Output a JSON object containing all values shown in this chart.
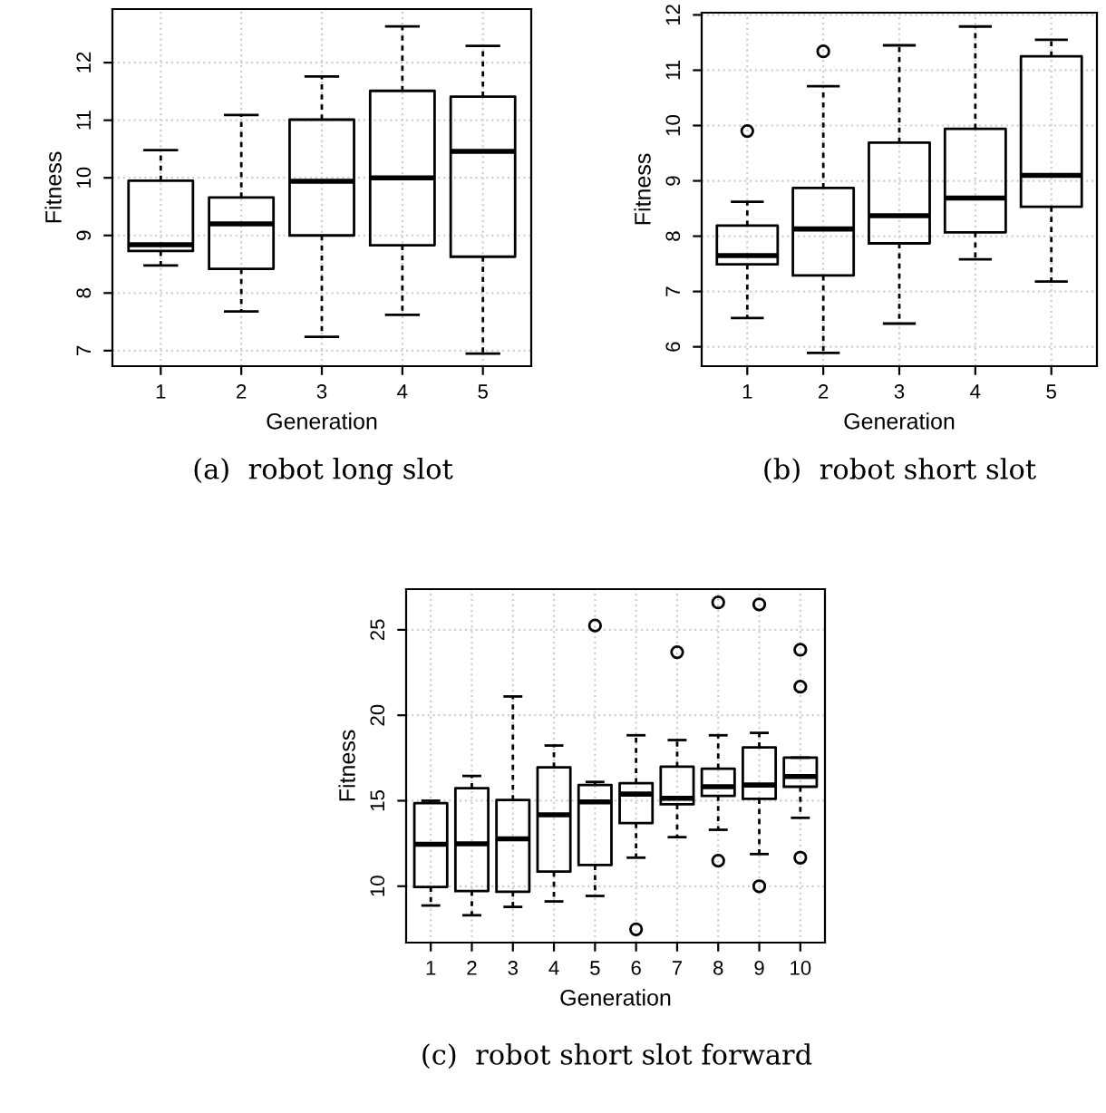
{
  "chart_data": [
    {
      "type": "box",
      "xlabel": "Generation",
      "ylabel": "Fitness",
      "annotations": [
        "(a)  robot long slot"
      ],
      "categories": [
        "1",
        "2",
        "3",
        "4",
        "5"
      ],
      "ylim": [
        6.73,
        12.93
      ],
      "yticks": [
        7,
        8,
        9,
        10,
        11,
        12
      ],
      "grid": true,
      "boxes": [
        {
          "low": 8.48,
          "q1": 8.73,
          "median": 8.84,
          "q3": 9.95,
          "high": 10.48
        },
        {
          "low": 7.68,
          "q1": 8.42,
          "median": 9.2,
          "q3": 9.66,
          "high": 11.09
        },
        {
          "low": 7.24,
          "q1": 9.0,
          "median": 9.94,
          "q3": 11.01,
          "high": 11.76
        },
        {
          "low": 7.62,
          "q1": 8.83,
          "median": 10.0,
          "q3": 11.51,
          "high": 12.63
        },
        {
          "low": 6.95,
          "q1": 8.63,
          "median": 10.46,
          "q3": 11.41,
          "high": 12.29
        }
      ]
    },
    {
      "type": "box",
      "xlabel": "Generation",
      "ylabel": "Fitness",
      "annotations": [
        "(b)  robot short slot"
      ],
      "categories": [
        "1",
        "2",
        "3",
        "4",
        "5"
      ],
      "ylim": [
        5.65,
        12.04
      ],
      "yticks": [
        6,
        7,
        8,
        9,
        10,
        11,
        12
      ],
      "grid": true,
      "boxes": [
        {
          "low": 6.52,
          "q1": 7.49,
          "median": 7.65,
          "q3": 8.19,
          "high": 8.62,
          "outliers": [
            9.9
          ]
        },
        {
          "low": 5.89,
          "q1": 7.29,
          "median": 8.13,
          "q3": 8.87,
          "high": 10.71,
          "outliers": [
            11.34
          ]
        },
        {
          "low": 6.42,
          "q1": 7.87,
          "median": 8.37,
          "q3": 9.69,
          "high": 11.45
        },
        {
          "low": 7.58,
          "q1": 8.07,
          "median": 8.69,
          "q3": 9.94,
          "high": 11.79
        },
        {
          "low": 7.18,
          "q1": 8.53,
          "median": 9.1,
          "q3": 11.25,
          "high": 11.55
        }
      ]
    },
    {
      "type": "box",
      "xlabel": "Generation",
      "ylabel": "Fitness",
      "annotations": [
        "(c)  robot short slot forward"
      ],
      "categories": [
        "1",
        "2",
        "3",
        "4",
        "5",
        "6",
        "7",
        "8",
        "9",
        "10"
      ],
      "ylim": [
        6.7,
        27.38
      ],
      "yticks": [
        10,
        15,
        20,
        25
      ],
      "grid": true,
      "boxes": [
        {
          "low": 8.87,
          "q1": 9.96,
          "median": 12.45,
          "q3": 14.86,
          "high": 15.0
        },
        {
          "low": 8.3,
          "q1": 9.72,
          "median": 12.48,
          "q3": 15.74,
          "high": 16.45
        },
        {
          "low": 8.79,
          "q1": 9.68,
          "median": 12.77,
          "q3": 15.04,
          "high": 21.1
        },
        {
          "low": 9.11,
          "q1": 10.85,
          "median": 14.18,
          "q3": 16.95,
          "high": 18.23
        },
        {
          "low": 9.43,
          "q1": 11.24,
          "median": 14.93,
          "q3": 15.92,
          "high": 16.1,
          "outliers": [
            25.25
          ]
        },
        {
          "low": 11.67,
          "q1": 13.69,
          "median": 15.39,
          "q3": 16.03,
          "high": 18.83,
          "outliers": [
            7.48
          ]
        },
        {
          "low": 12.87,
          "q1": 14.79,
          "median": 15.14,
          "q3": 16.99,
          "high": 18.55,
          "outliers": [
            23.69
          ]
        },
        {
          "low": 13.3,
          "q1": 15.28,
          "median": 15.82,
          "q3": 16.88,
          "high": 18.83,
          "outliers": [
            26.6,
            11.49
          ]
        },
        {
          "low": 11.88,
          "q1": 15.11,
          "median": 15.92,
          "q3": 18.12,
          "high": 18.97,
          "outliers": [
            26.49,
            10.0
          ]
        },
        {
          "low": 14.0,
          "q1": 15.82,
          "median": 16.42,
          "q3": 17.52,
          "high": 17.52,
          "outliers": [
            23.83,
            21.67,
            11.67
          ]
        }
      ]
    }
  ]
}
